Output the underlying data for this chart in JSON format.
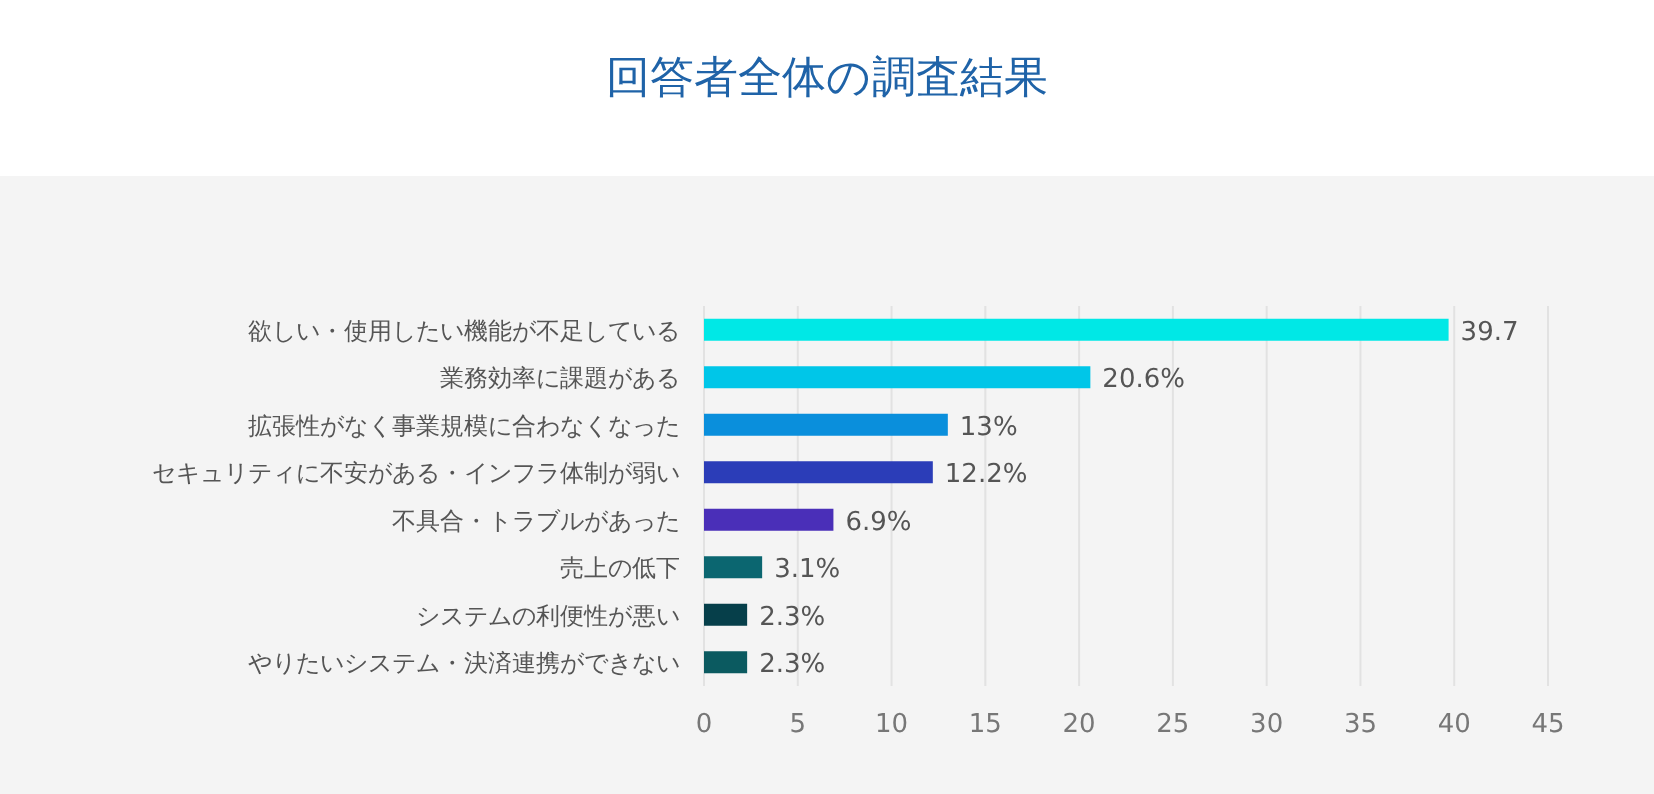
{
  "chart_data": {
    "type": "bar",
    "orientation": "horizontal",
    "title": "回答者全体の調査結果",
    "categories": [
      "欲しい・使用したい機能が不足している",
      "業務効率に課題がある",
      "拡張性がなく事業規模に合わなくなった",
      "セキュリティに不安がある・インフラ体制が弱い",
      "不具合・トラブルがあった",
      "売上の低下",
      "システムの利便性が悪い",
      "やりたいシステム・決済連携ができない"
    ],
    "values": [
      39.7,
      20.6,
      13,
      12.2,
      6.9,
      3.1,
      2.3,
      2.3
    ],
    "value_labels": [
      "39.7",
      "20.6%",
      "13%",
      "12.2%",
      "6.9%",
      "3.1%",
      "2.3%",
      "2.3%"
    ],
    "colors": [
      "#00e8e6",
      "#00c6e8",
      "#0a8fdc",
      "#2b3db8",
      "#4a2fb8",
      "#0b6670",
      "#063f4a",
      "#0b5a60"
    ],
    "xlim": [
      0,
      45
    ],
    "xticks": [
      0,
      5,
      10,
      15,
      20,
      25,
      30,
      35,
      40,
      45
    ],
    "grid": "x"
  }
}
